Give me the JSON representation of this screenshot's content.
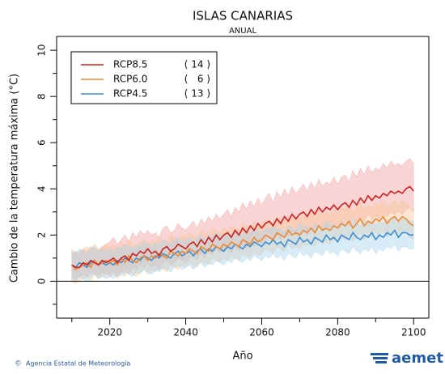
{
  "chart_data": {
    "type": "line",
    "title": "ISLAS CANARIAS",
    "subtitle": "ANUAL",
    "x_label": "Año",
    "y_label": "Cambio  de la temperatura máxima (°C)",
    "footer": "Agencia Estatal de Meteorología",
    "logo": "aemet",
    "xlim": [
      2006,
      2104
    ],
    "xticks": [
      2020,
      2040,
      2060,
      2080,
      2100
    ],
    "xminor": [
      2010,
      2030,
      2050,
      2070,
      2090
    ],
    "ylim": [
      -1.6,
      10.6
    ],
    "yticks": [
      0,
      2,
      4,
      6,
      8,
      10
    ],
    "yminor": [
      -1,
      1,
      3,
      5,
      7,
      9
    ],
    "reference_line": 0,
    "x": [
      2010,
      2011,
      2012,
      2013,
      2014,
      2015,
      2016,
      2017,
      2018,
      2019,
      2020,
      2021,
      2022,
      2023,
      2024,
      2025,
      2026,
      2027,
      2028,
      2029,
      2030,
      2031,
      2032,
      2033,
      2034,
      2035,
      2036,
      2037,
      2038,
      2039,
      2040,
      2041,
      2042,
      2043,
      2044,
      2045,
      2046,
      2047,
      2048,
      2049,
      2050,
      2051,
      2052,
      2053,
      2054,
      2055,
      2056,
      2057,
      2058,
      2059,
      2060,
      2061,
      2062,
      2063,
      2064,
      2065,
      2066,
      2067,
      2068,
      2069,
      2070,
      2071,
      2072,
      2073,
      2074,
      2075,
      2076,
      2077,
      2078,
      2079,
      2080,
      2081,
      2082,
      2083,
      2084,
      2085,
      2086,
      2087,
      2088,
      2089,
      2090,
      2091,
      2092,
      2093,
      2094,
      2095,
      2096,
      2097,
      2098,
      2099,
      2100
    ],
    "series": [
      {
        "name": "RCP8.5",
        "members": "( 14 )",
        "color": "#cc2222",
        "band_color": "#f2a0a0",
        "values": [
          0.7,
          0.6,
          0.6,
          0.8,
          0.7,
          0.9,
          0.8,
          0.7,
          0.9,
          0.8,
          0.9,
          1.0,
          0.8,
          1.0,
          1.1,
          0.9,
          1.2,
          1.1,
          1.3,
          1.2,
          1.4,
          1.2,
          1.3,
          1.1,
          1.4,
          1.5,
          1.3,
          1.4,
          1.6,
          1.5,
          1.4,
          1.6,
          1.7,
          1.5,
          1.8,
          1.6,
          1.9,
          1.7,
          2.0,
          1.8,
          2.0,
          2.1,
          1.9,
          2.2,
          2.0,
          2.3,
          2.1,
          2.4,
          2.2,
          2.5,
          2.3,
          2.5,
          2.6,
          2.4,
          2.7,
          2.5,
          2.8,
          2.6,
          2.9,
          2.7,
          2.9,
          3.0,
          2.8,
          3.1,
          2.9,
          3.2,
          3.0,
          3.2,
          3.1,
          3.3,
          3.1,
          3.3,
          3.4,
          3.2,
          3.5,
          3.3,
          3.6,
          3.4,
          3.7,
          3.5,
          3.7,
          3.6,
          3.8,
          3.7,
          3.9,
          3.8,
          3.9,
          3.8,
          4.0,
          4.1,
          3.9
        ],
        "upper": [
          1.2,
          1.3,
          1.2,
          1.4,
          1.3,
          1.5,
          1.4,
          1.3,
          1.5,
          1.6,
          1.7,
          1.9,
          1.6,
          1.8,
          2.0,
          1.7,
          2.1,
          1.9,
          2.2,
          2.0,
          2.2,
          2.0,
          2.1,
          1.9,
          2.3,
          2.4,
          2.1,
          2.2,
          2.5,
          2.3,
          2.2,
          2.4,
          2.6,
          2.3,
          2.7,
          2.5,
          2.8,
          2.6,
          2.9,
          2.7,
          2.9,
          3.1,
          2.8,
          3.2,
          3.0,
          3.4,
          3.1,
          3.5,
          3.2,
          3.6,
          3.3,
          3.6,
          3.8,
          3.4,
          3.9,
          3.6,
          4.0,
          3.7,
          4.1,
          3.8,
          4.0,
          4.2,
          3.9,
          4.3,
          4.0,
          4.4,
          4.1,
          4.3,
          4.2,
          4.5,
          4.2,
          4.5,
          4.6,
          4.3,
          4.8,
          4.5,
          4.9,
          4.6,
          5.0,
          4.7,
          4.9,
          4.8,
          5.1,
          4.9,
          5.2,
          5.0,
          5.1,
          5.0,
          5.2,
          5.3,
          5.1
        ],
        "lower": [
          0.2,
          0.1,
          0.2,
          0.3,
          0.2,
          0.4,
          0.3,
          0.2,
          0.4,
          0.3,
          0.3,
          0.4,
          0.2,
          0.4,
          0.5,
          0.3,
          0.6,
          0.5,
          0.7,
          0.6,
          0.8,
          0.6,
          0.7,
          0.5,
          0.8,
          0.9,
          0.7,
          0.8,
          1.0,
          0.9,
          0.8,
          1.0,
          1.1,
          0.9,
          1.2,
          1.0,
          1.3,
          1.1,
          1.4,
          1.2,
          1.3,
          1.4,
          1.2,
          1.5,
          1.3,
          1.6,
          1.4,
          1.7,
          1.5,
          1.8,
          1.6,
          1.8,
          1.9,
          1.7,
          2.0,
          1.8,
          2.1,
          1.9,
          2.2,
          2.0,
          2.1,
          2.2,
          2.0,
          2.3,
          2.1,
          2.4,
          2.2,
          2.4,
          2.3,
          2.5,
          2.3,
          2.5,
          2.6,
          2.4,
          2.7,
          2.5,
          2.8,
          2.6,
          2.9,
          2.7,
          2.8,
          2.7,
          2.9,
          2.8,
          3.0,
          2.9,
          3.0,
          2.9,
          3.1,
          3.2,
          3.0
        ]
      },
      {
        "name": "RCP6.0",
        "members": "(   6 )",
        "color": "#ee8833",
        "band_color": "#f8c898",
        "values": [
          0.7,
          0.5,
          0.6,
          0.7,
          0.8,
          0.6,
          0.9,
          0.7,
          0.8,
          0.9,
          0.8,
          0.9,
          0.7,
          1.0,
          0.8,
          1.1,
          0.9,
          0.8,
          1.0,
          1.1,
          0.9,
          1.1,
          1.0,
          1.2,
          1.1,
          1.0,
          1.3,
          1.2,
          1.1,
          1.3,
          1.2,
          1.4,
          1.3,
          1.2,
          1.5,
          1.4,
          1.3,
          1.6,
          1.5,
          1.4,
          1.6,
          1.5,
          1.7,
          1.6,
          1.5,
          1.8,
          1.7,
          1.6,
          1.9,
          1.7,
          1.8,
          2.0,
          1.9,
          1.8,
          2.1,
          2.0,
          1.9,
          2.2,
          2.0,
          2.1,
          2.0,
          2.2,
          2.1,
          2.3,
          2.1,
          2.4,
          2.2,
          2.3,
          2.2,
          2.4,
          2.3,
          2.5,
          2.4,
          2.6,
          2.3,
          2.5,
          2.7,
          2.4,
          2.6,
          2.5,
          2.7,
          2.6,
          2.8,
          2.5,
          2.7,
          2.8,
          2.6,
          2.8,
          2.7,
          2.5,
          2.4
        ],
        "upper": [
          1.4,
          1.2,
          1.3,
          1.4,
          1.5,
          1.3,
          1.6,
          1.4,
          1.5,
          1.6,
          1.5,
          1.6,
          1.4,
          1.7,
          1.5,
          1.8,
          1.6,
          1.5,
          1.7,
          1.8,
          1.6,
          1.8,
          1.7,
          1.9,
          1.8,
          1.7,
          2.0,
          1.9,
          1.8,
          2.0,
          1.9,
          2.1,
          2.0,
          1.9,
          2.2,
          2.1,
          2.0,
          2.3,
          2.2,
          2.1,
          2.3,
          2.2,
          2.4,
          2.3,
          2.2,
          2.5,
          2.4,
          2.3,
          2.6,
          2.4,
          2.5,
          2.7,
          2.6,
          2.5,
          2.8,
          2.7,
          2.6,
          2.9,
          2.7,
          2.8,
          2.7,
          2.9,
          2.8,
          3.0,
          2.8,
          3.1,
          2.9,
          3.0,
          2.9,
          3.1,
          3.0,
          3.2,
          3.1,
          3.3,
          3.0,
          3.2,
          3.4,
          3.1,
          3.3,
          3.2,
          3.4,
          3.3,
          3.5,
          3.2,
          3.4,
          3.5,
          3.3,
          3.5,
          3.4,
          3.2,
          3.1
        ],
        "lower": [
          0.0,
          -0.1,
          0.0,
          0.1,
          0.2,
          0.0,
          0.3,
          0.1,
          0.2,
          0.3,
          0.2,
          0.3,
          0.1,
          0.4,
          0.2,
          0.5,
          0.3,
          0.2,
          0.4,
          0.5,
          0.3,
          0.5,
          0.4,
          0.6,
          0.5,
          0.4,
          0.7,
          0.6,
          0.5,
          0.7,
          0.6,
          0.8,
          0.7,
          0.6,
          0.9,
          0.8,
          0.7,
          1.0,
          0.9,
          0.8,
          1.0,
          0.9,
          1.1,
          1.0,
          0.9,
          1.2,
          1.1,
          1.0,
          1.3,
          1.1,
          1.2,
          1.4,
          1.3,
          1.2,
          1.5,
          1.4,
          1.3,
          1.6,
          1.4,
          1.5,
          1.4,
          1.6,
          1.5,
          1.7,
          1.5,
          1.8,
          1.6,
          1.7,
          1.6,
          1.8,
          1.7,
          1.9,
          1.8,
          2.0,
          1.7,
          1.9,
          2.1,
          1.8,
          2.0,
          1.9,
          2.1,
          2.0,
          2.2,
          1.9,
          2.1,
          2.2,
          2.0,
          2.2,
          2.1,
          1.9,
          1.8
        ]
      },
      {
        "name": "RCP4.5",
        "members": "( 13 )",
        "color": "#3a8fd6",
        "band_color": "#a8d4ee",
        "values": [
          0.7,
          0.6,
          0.8,
          0.7,
          0.6,
          0.8,
          0.9,
          0.7,
          0.8,
          0.7,
          0.8,
          0.7,
          0.9,
          0.8,
          1.0,
          0.9,
          0.8,
          1.0,
          0.9,
          1.1,
          1.0,
          0.9,
          1.1,
          1.0,
          1.2,
          1.1,
          1.0,
          1.2,
          1.3,
          1.1,
          1.2,
          1.3,
          1.1,
          1.3,
          1.4,
          1.2,
          1.4,
          1.3,
          1.5,
          1.4,
          1.3,
          1.5,
          1.4,
          1.6,
          1.5,
          1.4,
          1.6,
          1.5,
          1.7,
          1.6,
          1.5,
          1.7,
          1.6,
          1.8,
          1.6,
          1.7,
          1.5,
          1.8,
          1.7,
          1.6,
          1.9,
          1.7,
          1.8,
          1.6,
          1.9,
          1.8,
          1.7,
          2.0,
          1.8,
          1.9,
          1.7,
          2.0,
          1.9,
          1.8,
          2.1,
          1.9,
          1.8,
          2.0,
          1.9,
          2.1,
          1.8,
          2.0,
          1.9,
          2.1,
          2.0,
          2.2,
          1.9,
          2.1,
          2.1,
          2.0,
          2.0
        ],
        "upper": [
          1.3,
          1.2,
          1.4,
          1.3,
          1.2,
          1.4,
          1.5,
          1.3,
          1.4,
          1.3,
          1.4,
          1.3,
          1.5,
          1.4,
          1.6,
          1.5,
          1.4,
          1.6,
          1.5,
          1.7,
          1.6,
          1.5,
          1.7,
          1.6,
          1.8,
          1.7,
          1.6,
          1.8,
          1.9,
          1.7,
          1.8,
          1.9,
          1.7,
          1.9,
          2.0,
          1.8,
          2.0,
          1.9,
          2.1,
          2.0,
          1.9,
          2.1,
          2.0,
          2.2,
          2.1,
          2.0,
          2.2,
          2.1,
          2.3,
          2.2,
          2.1,
          2.3,
          2.2,
          2.4,
          2.2,
          2.3,
          2.1,
          2.4,
          2.3,
          2.2,
          2.5,
          2.3,
          2.4,
          2.2,
          2.5,
          2.4,
          2.3,
          2.6,
          2.4,
          2.5,
          2.3,
          2.6,
          2.5,
          2.4,
          2.7,
          2.5,
          2.4,
          2.6,
          2.5,
          2.7,
          2.4,
          2.6,
          2.5,
          2.7,
          2.6,
          2.8,
          2.5,
          2.7,
          2.7,
          2.6,
          2.6
        ],
        "lower": [
          0.1,
          0.0,
          0.2,
          0.1,
          0.0,
          0.2,
          0.3,
          0.1,
          0.2,
          0.1,
          0.2,
          0.1,
          0.3,
          0.2,
          0.4,
          0.3,
          0.2,
          0.4,
          0.3,
          0.5,
          0.4,
          0.3,
          0.5,
          0.4,
          0.6,
          0.5,
          0.4,
          0.6,
          0.7,
          0.5,
          0.6,
          0.7,
          0.5,
          0.7,
          0.8,
          0.6,
          0.8,
          0.7,
          0.9,
          0.8,
          0.7,
          0.9,
          0.8,
          1.0,
          0.9,
          0.8,
          1.0,
          0.9,
          1.1,
          1.0,
          0.9,
          1.1,
          1.0,
          1.2,
          1.0,
          1.1,
          0.9,
          1.2,
          1.1,
          1.0,
          1.3,
          1.1,
          1.2,
          1.0,
          1.3,
          1.2,
          1.1,
          1.4,
          1.2,
          1.3,
          1.1,
          1.4,
          1.3,
          1.2,
          1.5,
          1.3,
          1.2,
          1.4,
          1.3,
          1.5,
          1.2,
          1.4,
          1.3,
          1.5,
          1.4,
          1.6,
          1.3,
          1.5,
          1.5,
          1.4,
          1.4
        ]
      }
    ]
  }
}
